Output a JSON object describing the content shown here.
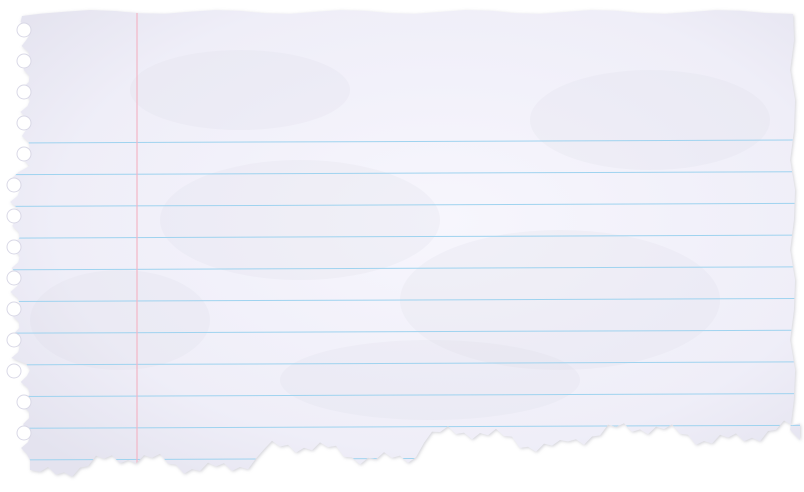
{
  "paper": {
    "paper_color": "#f3f2fb",
    "paper_shadow_color": "#d9d8e6",
    "rule_line_color": "#9fd3ef",
    "margin_line_color": "#f2b6c6",
    "torn_edge_color": "#fbfbff",
    "background_color": "#ffffff",
    "icon": "torn-lined-notebook-paper"
  }
}
